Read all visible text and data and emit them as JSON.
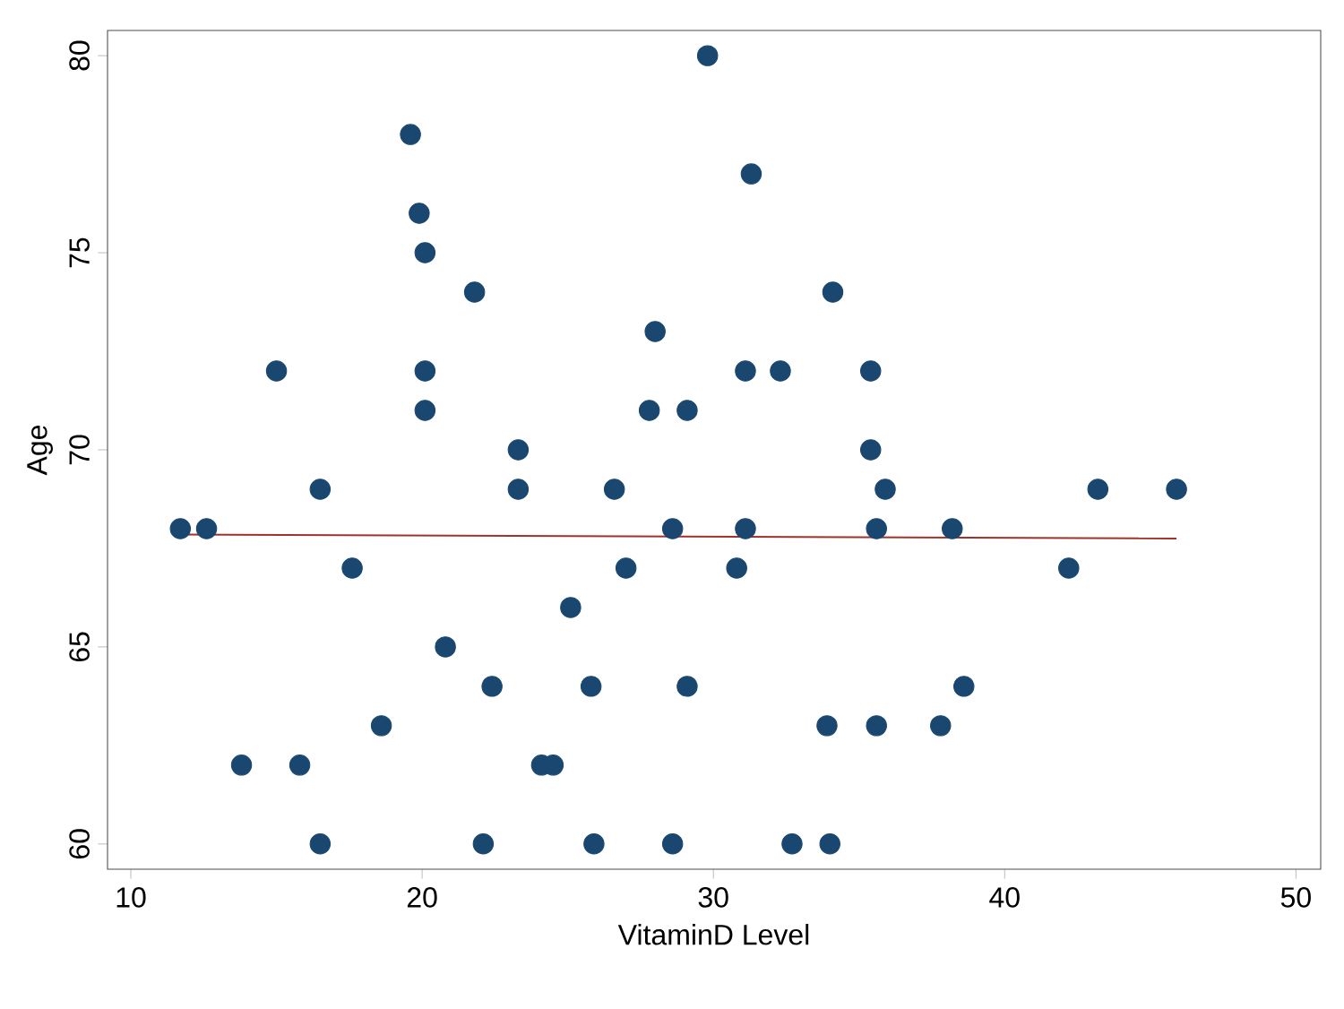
{
  "chart_data": {
    "type": "scatter",
    "xlabel": "VitaminD Level",
    "ylabel": "Age",
    "xlim": [
      9.2,
      50.85
    ],
    "ylim": [
      59.36,
      80.64
    ],
    "xticks": [
      10,
      20,
      30,
      40,
      50
    ],
    "yticks": [
      60,
      65,
      70,
      75,
      80
    ],
    "grid": false,
    "series": [
      {
        "color": "#1a476f",
        "marker": "circle",
        "x": [
          11.7,
          12.6,
          13.8,
          15.0,
          15.8,
          16.5,
          16.5,
          17.6,
          18.6,
          19.6,
          19.9,
          20.1,
          20.1,
          20.1,
          20.8,
          21.8,
          22.1,
          22.4,
          23.3,
          23.3,
          24.1,
          24.5,
          25.1,
          25.8,
          25.9,
          26.6,
          27.0,
          27.8,
          28.0,
          28.6,
          28.6,
          29.1,
          29.1,
          29.8,
          30.8,
          31.1,
          31.1,
          31.3,
          32.3,
          32.7,
          33.9,
          34.0,
          34.1,
          35.4,
          35.4,
          35.6,
          35.6,
          35.9,
          37.8,
          38.2,
          38.6,
          42.2,
          43.2,
          45.9
        ],
        "values": [
          68,
          68,
          62,
          72,
          62,
          60,
          69,
          67,
          63,
          78,
          76,
          75,
          72,
          71,
          65,
          74,
          60,
          64,
          70,
          69,
          62,
          62,
          66,
          64,
          60,
          69,
          67,
          71,
          73,
          68,
          60,
          71,
          64,
          80,
          67,
          72,
          68,
          77,
          72,
          60,
          63,
          60,
          74,
          72,
          70,
          68,
          63,
          69,
          63,
          68,
          64,
          67,
          69,
          69
        ]
      },
      {
        "type": "line",
        "color": "#a0322e",
        "x": [
          11.7,
          45.9
        ],
        "values": [
          67.85,
          67.75
        ],
        "marker": "none"
      }
    ]
  }
}
